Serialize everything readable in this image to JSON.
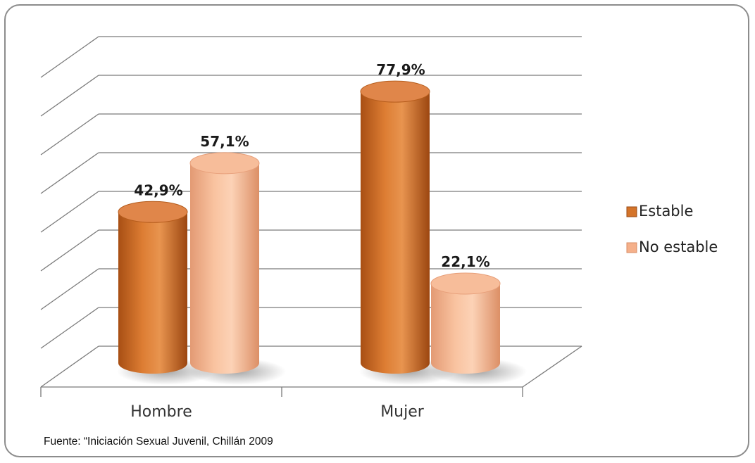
{
  "chart_data": {
    "type": "bar",
    "categories": [
      "Hombre",
      "Mujer"
    ],
    "series": [
      {
        "name": "Estable",
        "values": [
          42.9,
          77.9
        ],
        "labels": [
          "42,9%",
          "77,9%"
        ],
        "color": "#d4742a"
      },
      {
        "name": "No estable",
        "values": [
          57.1,
          22.1
        ],
        "labels": [
          "57,1%",
          "22,1%"
        ],
        "color": "#f5b08a"
      }
    ],
    "ylim": [
      0,
      90
    ],
    "grid": true,
    "legend_position": "right",
    "style": "3d-cylinder"
  },
  "source_text": "Fuente: “Iniciación Sexual Juvenil,  Chillán 2009"
}
